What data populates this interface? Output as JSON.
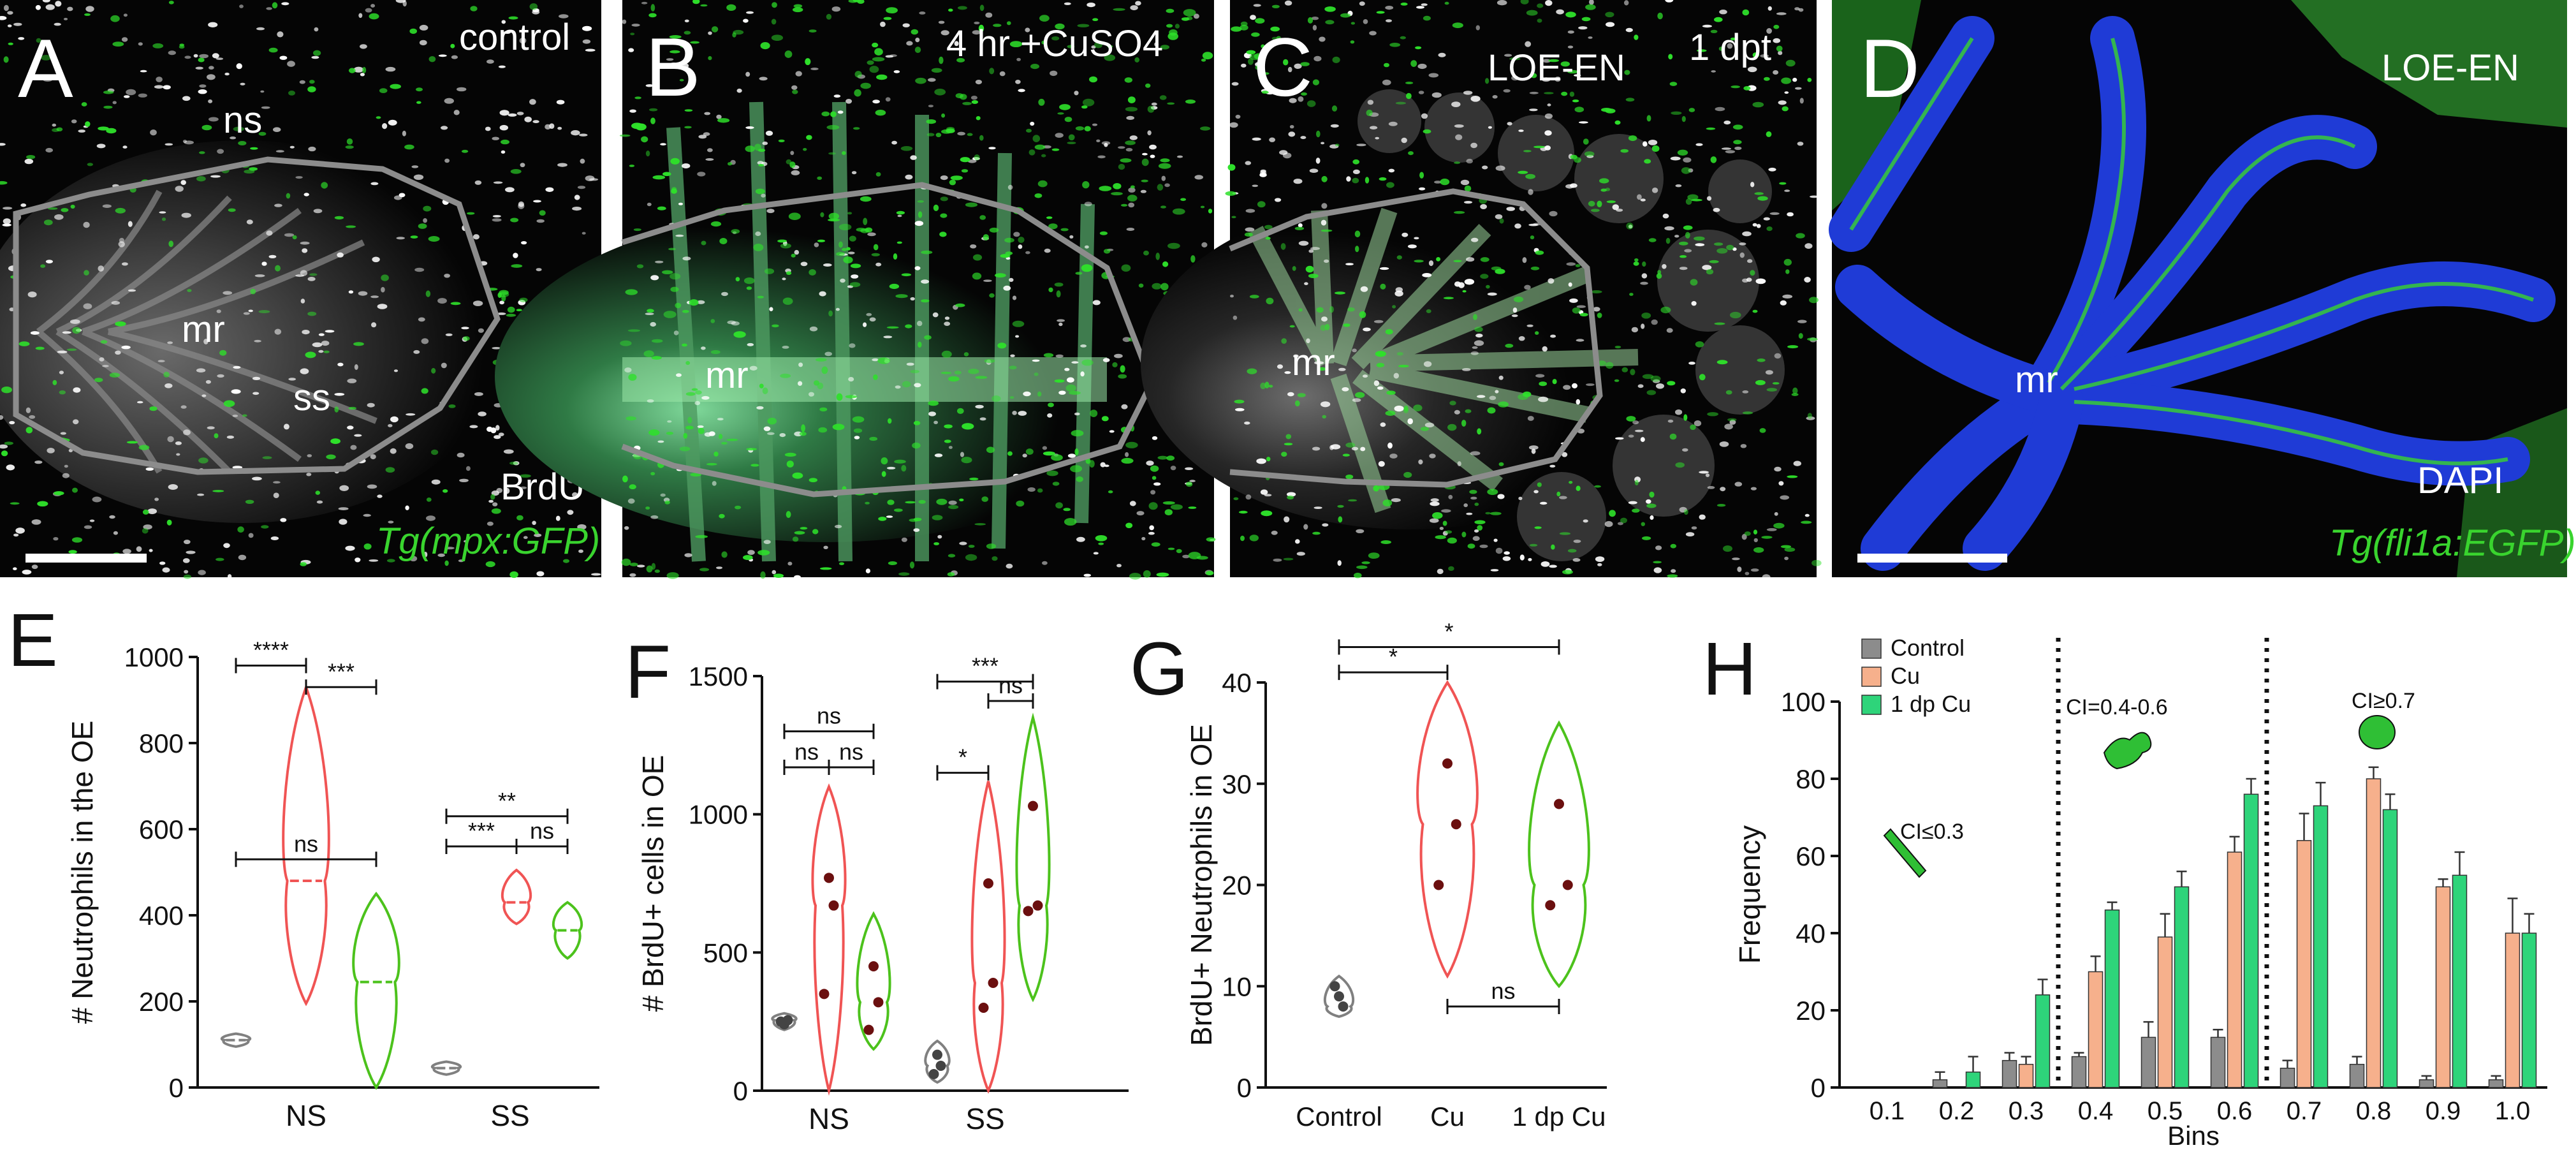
{
  "panels": {
    "A": {
      "letter": "A",
      "condition": "control",
      "label_ns": "ns",
      "label_mr": "mr",
      "label_ss": "ss",
      "stain": "BrdU",
      "transgene": "Tg(mpx:GFP)"
    },
    "B": {
      "letter": "B",
      "condition": "4 hr +CuSO4",
      "label_mr": "mr"
    },
    "C": {
      "letter": "C",
      "condition": "1 dpt",
      "tissue": "LOE-EN",
      "label_mr": "mr"
    },
    "D": {
      "letter": "D",
      "tissue": "LOE-EN",
      "label_mr": "mr",
      "stain": "DAPI",
      "transgene": "Tg(fli1a:EGFP)"
    },
    "E": {
      "letter": "E"
    },
    "F": {
      "letter": "F"
    },
    "G": {
      "letter": "G"
    },
    "H": {
      "letter": "H"
    }
  },
  "colors": {
    "control": "#808080",
    "cu": "#f05454",
    "dpcu": "#4cc21c",
    "bar_control": "#8c8c8c",
    "bar_cu": "#f6b08c",
    "bar_dpcu": "#2ed47a",
    "gfp": "#39d42e",
    "dapi": "#1f3bd6"
  },
  "chart_data": [
    {
      "id": "E",
      "type": "violin",
      "ylabel": "# Neutrophils in the OE",
      "ylim": [
        0,
        1000
      ],
      "yticks": [
        0,
        200,
        400,
        600,
        800,
        1000
      ],
      "categories": [
        "NS",
        "SS"
      ],
      "series": [
        {
          "group": "NS",
          "condition": "control",
          "median": 110,
          "min": 95,
          "max": 125
        },
        {
          "group": "NS",
          "condition": "Cu",
          "median": 480,
          "min": 195,
          "max": 930
        },
        {
          "group": "NS",
          "condition": "1 dp Cu",
          "median": 245,
          "min": 0,
          "max": 450
        },
        {
          "group": "SS",
          "condition": "control",
          "median": 45,
          "min": 30,
          "max": 60
        },
        {
          "group": "SS",
          "condition": "Cu",
          "median": 430,
          "min": 380,
          "max": 505
        },
        {
          "group": "SS",
          "condition": "1 dp Cu",
          "median": 365,
          "min": 300,
          "max": 430
        }
      ],
      "significance": [
        "****",
        "***",
        "ns",
        "**",
        "***",
        "ns"
      ]
    },
    {
      "id": "F",
      "type": "violin",
      "ylabel": "# BrdU+ cells in OE",
      "ylim": [
        0,
        1500
      ],
      "yticks": [
        0,
        500,
        1000,
        1500
      ],
      "categories": [
        "NS",
        "SS"
      ],
      "series": [
        {
          "group": "NS",
          "condition": "control",
          "points": [
            240,
            255,
            250
          ],
          "min": 220,
          "max": 280
        },
        {
          "group": "NS",
          "condition": "Cu",
          "points": [
            770,
            670,
            350
          ],
          "min": 0,
          "max": 1100
        },
        {
          "group": "NS",
          "condition": "1 dp Cu",
          "points": [
            450,
            320,
            220
          ],
          "min": 150,
          "max": 640
        },
        {
          "group": "SS",
          "condition": "control",
          "points": [
            130,
            90,
            60
          ],
          "min": 30,
          "max": 180
        },
        {
          "group": "SS",
          "condition": "Cu",
          "points": [
            750,
            390,
            300
          ],
          "min": 0,
          "max": 1120
        },
        {
          "group": "SS",
          "condition": "1 dp Cu",
          "points": [
            1030,
            670,
            650
          ],
          "min": 330,
          "max": 1350
        }
      ],
      "significance": [
        "ns",
        "ns",
        "ns",
        "***",
        "ns",
        "*"
      ]
    },
    {
      "id": "G",
      "type": "violin",
      "ylabel": "BrdU+ Neutrophils in OE",
      "ylim": [
        0,
        40
      ],
      "yticks": [
        0,
        10,
        20,
        30,
        40
      ],
      "categories": [
        "Control",
        "Cu",
        "1 dp Cu"
      ],
      "series": [
        {
          "group": "Control",
          "points": [
            9,
            8,
            10
          ],
          "min": 7,
          "max": 11
        },
        {
          "group": "Cu",
          "points": [
            32,
            26,
            20
          ],
          "min": 11,
          "max": 40
        },
        {
          "group": "1 dp Cu",
          "points": [
            28,
            20,
            18
          ],
          "min": 10,
          "max": 36
        }
      ],
      "significance": [
        "*",
        "*",
        "ns"
      ]
    },
    {
      "id": "H",
      "type": "bar",
      "xlabel": "Bins",
      "ylabel": "Frequency",
      "ylim": [
        0,
        100
      ],
      "yticks": [
        0,
        20,
        40,
        60,
        80,
        100
      ],
      "categories": [
        "0.1",
        "0.2",
        "0.3",
        "0.4",
        "0.5",
        "0.6",
        "0.7",
        "0.8",
        "0.9",
        "1.0"
      ],
      "series": [
        {
          "name": "Control",
          "values": [
            0,
            2,
            7,
            8,
            13,
            13,
            5,
            6,
            2,
            2
          ],
          "errors": [
            0,
            2,
            2,
            1,
            4,
            2,
            2,
            2,
            1,
            1
          ]
        },
        {
          "name": "Cu",
          "values": [
            0,
            0,
            6,
            30,
            39,
            61,
            64,
            80,
            52,
            40
          ],
          "errors": [
            0,
            0,
            2,
            4,
            6,
            4,
            7,
            3,
            2,
            9
          ]
        },
        {
          "name": "1 dp Cu",
          "values": [
            0,
            4,
            24,
            46,
            52,
            76,
            73,
            72,
            55,
            40
          ],
          "errors": [
            0,
            4,
            4,
            2,
            4,
            4,
            6,
            4,
            6,
            5
          ]
        }
      ],
      "annotations": [
        "CI≤0.3",
        "CI=0.4-0.6",
        "CI≥0.7"
      ]
    }
  ]
}
